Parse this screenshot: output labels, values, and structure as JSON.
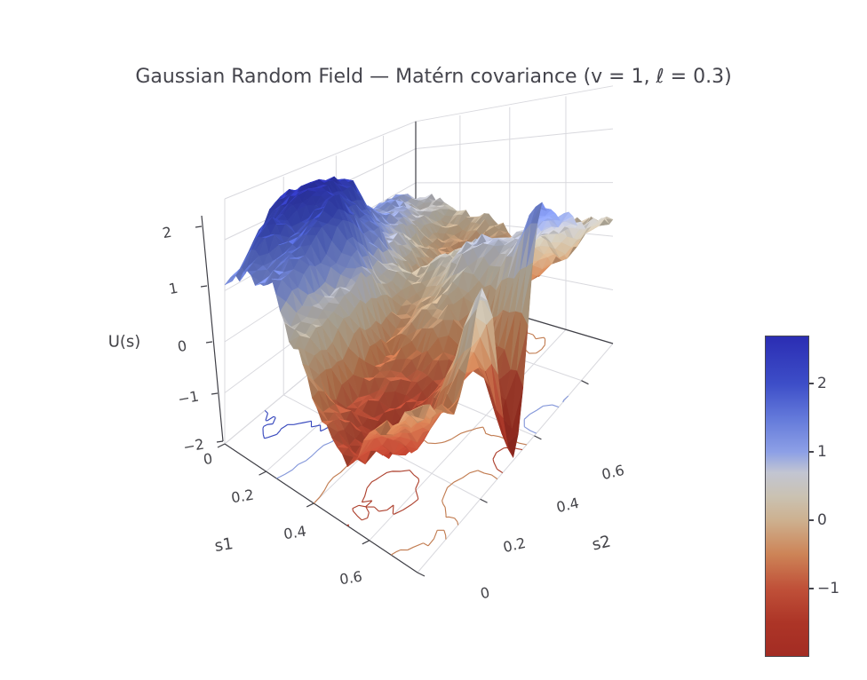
{
  "title": "Gaussian Random Field — Matérn covariance (v = 1, ℓ = 0.3)",
  "chart_data": {
    "type": "surface",
    "title": "Gaussian Random Field — Matérn covariance (v = 1, ℓ = 0.3)",
    "axes": {
      "x": {
        "label": "s1",
        "tick_labels": [
          "0",
          "0.2",
          "0.4",
          "0.6"
        ],
        "tick_values": [
          0,
          0.2,
          0.4,
          0.6
        ],
        "range": [
          0,
          0.75
        ]
      },
      "y": {
        "label": "s2",
        "tick_labels": [
          "0",
          "0.2",
          "0.4",
          "0.6"
        ],
        "tick_values": [
          0,
          0.2,
          0.4,
          0.6
        ],
        "range": [
          0,
          0.75
        ]
      },
      "z": {
        "label": "U(s)",
        "tick_labels": [
          "2",
          "1",
          "0",
          "−1",
          "−2"
        ],
        "tick_values": [
          2,
          1,
          0,
          -1,
          -2
        ],
        "range": [
          -2,
          2.8
        ]
      }
    },
    "zmin": -2.0,
    "zmax": 2.7,
    "surface_grid": {
      "s1": [
        0,
        0.107,
        0.214,
        0.321,
        0.429,
        0.536,
        0.643,
        0.75
      ],
      "s2": [
        0,
        0.107,
        0.214,
        0.321,
        0.429,
        0.536,
        0.643,
        0.75
      ],
      "z": [
        [
          1.3,
          1.8,
          2.3,
          2.1,
          1.4,
          1.0,
          0.9,
          0.6
        ],
        [
          1.5,
          2.1,
          2.7,
          2.4,
          1.5,
          0.8,
          0.6,
          0.4
        ],
        [
          1.1,
          1.6,
          2.1,
          1.7,
          0.9,
          0.3,
          0.1,
          0.1
        ],
        [
          0.3,
          0.6,
          0.8,
          0.4,
          0.0,
          -0.4,
          -0.3,
          0.0
        ],
        [
          -0.6,
          -1.0,
          -0.8,
          -0.3,
          0.3,
          0.2,
          -0.3,
          -0.4
        ],
        [
          -1.0,
          -1.4,
          -1.1,
          0.0,
          0.6,
          0.3,
          -0.6,
          -0.3
        ],
        [
          -0.6,
          -1.2,
          -0.6,
          -0.8,
          0.5,
          0.6,
          0.0,
          0.1
        ],
        [
          -0.3,
          -0.5,
          0.7,
          -1.9,
          1.2,
          0.8,
          0.4,
          0.2
        ]
      ]
    },
    "floor_contour_levels": [
      2,
      1,
      -0.5,
      -1.2
    ],
    "colorscale": [
      {
        "v": -2.0,
        "c": "#a32c23"
      },
      {
        "v": -1.5,
        "c": "#ad3527"
      },
      {
        "v": -1.0,
        "c": "#c05139"
      },
      {
        "v": -0.5,
        "c": "#cd8457"
      },
      {
        "v": 0.0,
        "c": "#cdb190"
      },
      {
        "v": 0.35,
        "c": "#cac2b2"
      },
      {
        "v": 0.7,
        "c": "#c2c5d2"
      },
      {
        "v": 1.0,
        "c": "#8da0e6"
      },
      {
        "v": 1.5,
        "c": "#6379da"
      },
      {
        "v": 2.0,
        "c": "#3d4ec8"
      },
      {
        "v": 2.7,
        "c": "#2b2db3"
      }
    ],
    "colorbar": {
      "ticks": [
        {
          "label": "2",
          "value": 2
        },
        {
          "label": "1",
          "value": 1
        },
        {
          "label": "0",
          "value": 0
        },
        {
          "label": "−1",
          "value": -1
        }
      ]
    },
    "legend": "none",
    "grid": "on"
  },
  "colors": {
    "background": "#ffffff",
    "gridline": "#d9d9de",
    "axisline": "#3f3f46",
    "text": "#45454d"
  }
}
